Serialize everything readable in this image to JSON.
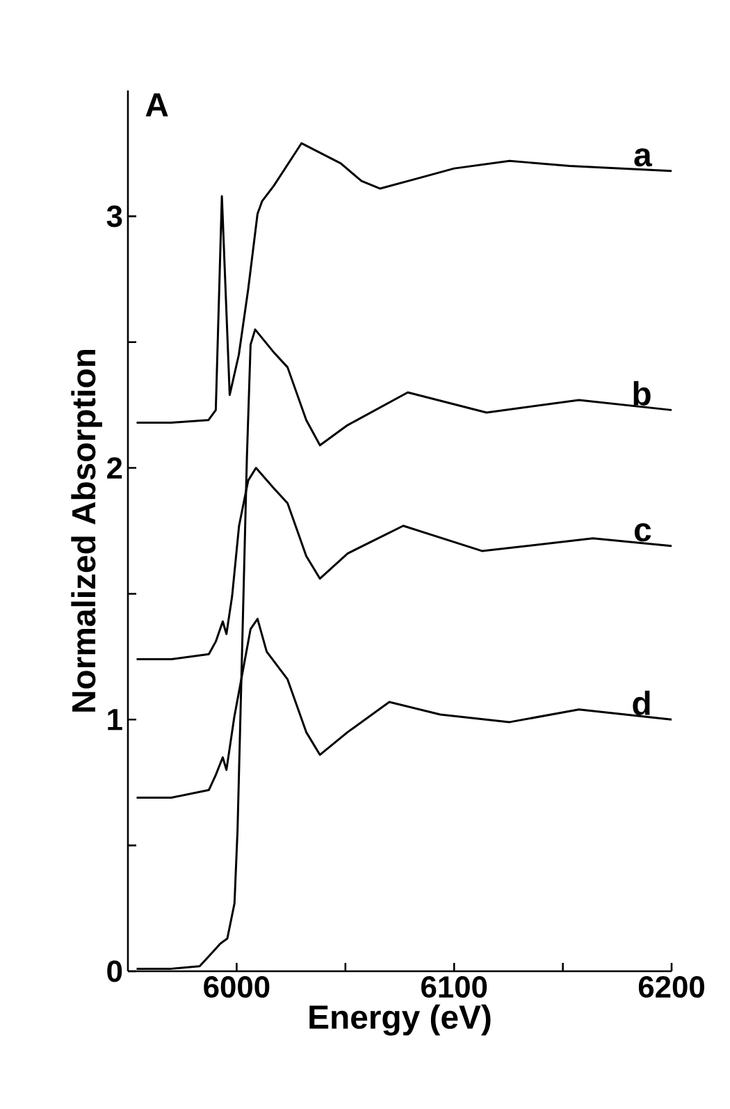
{
  "chart_data": {
    "type": "line",
    "xlabel": "Energy (eV)",
    "ylabel": "Normalized Absorption",
    "annotations": [
      "A"
    ],
    "xlim": [
      5950,
      6200
    ],
    "ylim": [
      0,
      3.5
    ],
    "xticks": [
      6000,
      {
        "value": 6050,
        "label": null
      },
      6100,
      {
        "value": 6150,
        "label": null
      },
      6200
    ],
    "yticks": [
      0,
      {
        "value": 0.5,
        "label": null
      },
      1,
      {
        "value": 1.5,
        "label": null
      },
      2,
      {
        "value": 2.5,
        "label": null
      },
      3
    ],
    "grid": false,
    "legend": false,
    "marker": "none",
    "line_style": "solid",
    "series": [
      {
        "name": "a",
        "color": "#000000",
        "x": [
          5954,
          5970,
          5987,
          5990.4,
          5993.2,
          5996.8,
          6001,
          6005.3,
          6009.6,
          6011.7,
          6017,
          6029.8,
          6047.9,
          6057.4,
          6066,
          6083,
          6100,
          6125.5,
          6153,
          6200
        ],
        "values": [
          2.18,
          2.18,
          2.19,
          2.23,
          3.08,
          2.29,
          2.45,
          2.71,
          3.01,
          3.06,
          3.12,
          3.29,
          3.21,
          3.14,
          3.11,
          3.15,
          3.19,
          3.22,
          3.2,
          3.18
        ]
      },
      {
        "name": "b",
        "color": "#000000",
        "x": [
          5954,
          5970,
          5983,
          5989.4,
          5992.5,
          5995.7,
          5999,
          6000.4,
          6002.6,
          6004.7,
          6006.4,
          6008.5,
          6017,
          6023.4,
          6032,
          6038.3,
          6051,
          6078.7,
          6114.9,
          6157.4,
          6200
        ],
        "values": [
          0.01,
          0.01,
          0.02,
          0.08,
          0.11,
          0.13,
          0.27,
          0.56,
          1.31,
          2.04,
          2.49,
          2.55,
          2.46,
          2.4,
          2.19,
          2.09,
          2.17,
          2.3,
          2.22,
          2.27,
          2.23
        ]
      },
      {
        "name": "c",
        "color": "#000000",
        "x": [
          5954,
          5970,
          5987.2,
          5990.4,
          5993.6,
          5995.3,
          5997.9,
          6001.1,
          6005.3,
          6008.9,
          6017,
          6023.4,
          6032,
          6038.3,
          6051,
          6076.6,
          6112.8,
          6163.8,
          6200
        ],
        "values": [
          1.24,
          1.24,
          1.26,
          1.31,
          1.39,
          1.34,
          1.49,
          1.77,
          1.95,
          2.0,
          1.92,
          1.86,
          1.65,
          1.56,
          1.66,
          1.77,
          1.67,
          1.72,
          1.69
        ]
      },
      {
        "name": "d",
        "color": "#000000",
        "x": [
          5954,
          5970,
          5987.2,
          5990.4,
          5993.6,
          5995.3,
          5998.9,
          6003.2,
          6006.4,
          6009.6,
          6013.8,
          6023.4,
          6032,
          6038.3,
          6051,
          6070.2,
          6093.6,
          6125.5,
          6157.4,
          6200
        ],
        "values": [
          0.69,
          0.69,
          0.72,
          0.78,
          0.85,
          0.8,
          1.01,
          1.21,
          1.36,
          1.4,
          1.27,
          1.16,
          0.95,
          0.86,
          0.95,
          1.07,
          1.02,
          0.99,
          1.04,
          1.0
        ]
      }
    ]
  }
}
